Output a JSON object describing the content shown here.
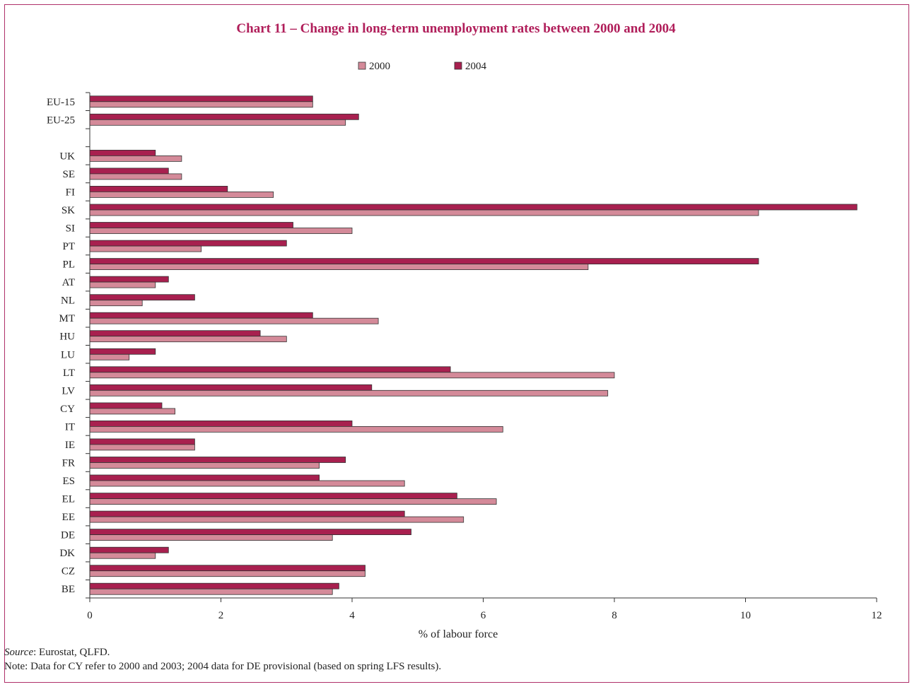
{
  "chart_data": {
    "type": "bar",
    "orientation": "horizontal",
    "title": "Chart 11 – Change in long-term unemployment rates between 2000 and 2004",
    "xlabel": "% of labour force",
    "ylabel": "",
    "xlim": [
      0,
      12
    ],
    "xticks": [
      "0",
      "2",
      "4",
      "6",
      "8",
      "10",
      "12"
    ],
    "legend_position": "top-center",
    "grid": false,
    "categories": [
      "EU-15",
      "EU-25",
      "",
      "UK",
      "SE",
      "FI",
      "SK",
      "SI",
      "PT",
      "PL",
      "AT",
      "NL",
      "MT",
      "HU",
      "LU",
      "LT",
      "LV",
      "CY",
      "IT",
      "IE",
      "FR",
      "ES",
      "EL",
      "EE",
      "DE",
      "DK",
      "CZ",
      "BE"
    ],
    "series": [
      {
        "name": "2000",
        "color": "#d48a99",
        "values": [
          3.4,
          3.9,
          null,
          1.4,
          1.4,
          2.8,
          10.2,
          4.0,
          1.7,
          7.6,
          1.0,
          0.8,
          4.4,
          3.0,
          0.6,
          8.0,
          7.9,
          1.3,
          6.3,
          1.6,
          3.5,
          4.8,
          6.2,
          5.7,
          3.7,
          1.0,
          4.2,
          3.7
        ]
      },
      {
        "name": "2004",
        "color": "#a8204f",
        "values": [
          3.4,
          4.1,
          null,
          1.0,
          1.2,
          2.1,
          11.7,
          3.1,
          3.0,
          10.2,
          1.2,
          1.6,
          3.4,
          2.6,
          1.0,
          5.5,
          4.3,
          1.1,
          4.0,
          1.6,
          3.9,
          3.5,
          5.6,
          4.8,
          4.9,
          1.2,
          4.2,
          3.8
        ]
      }
    ]
  },
  "footnotes": {
    "source_label": "Source",
    "source_text": ": Eurostat, QLFD.",
    "note": "Note: Data for CY refer to 2000 and 2003; 2004 data for DE provisional (based on spring LFS results)."
  }
}
